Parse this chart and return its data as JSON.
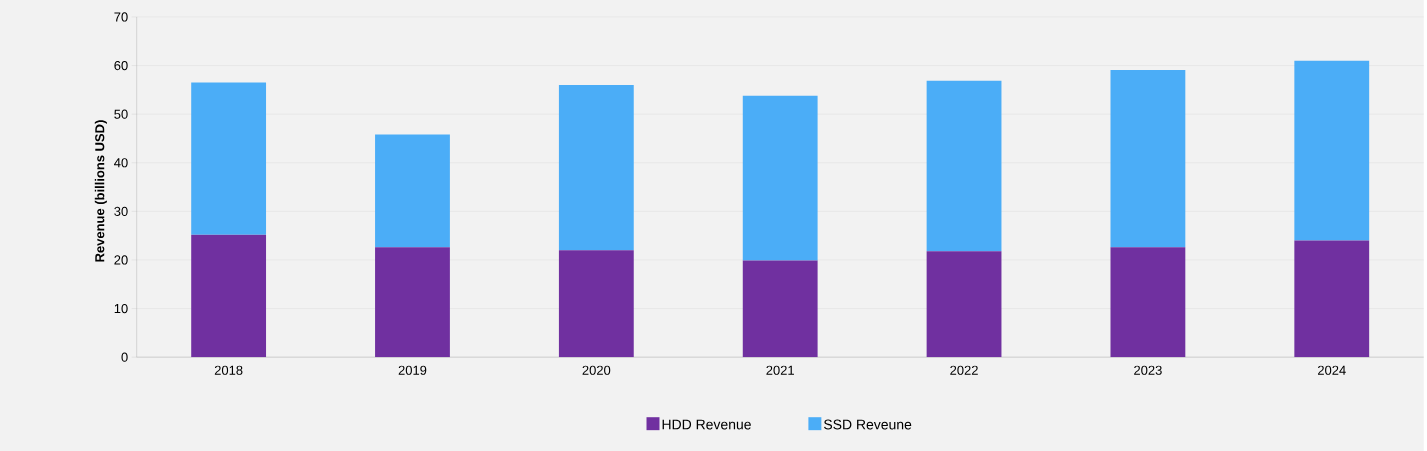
{
  "chart_data": {
    "type": "bar",
    "stacked": true,
    "ylabel": "Revenue (billions USD)",
    "categories": [
      "2018",
      "2019",
      "2020",
      "2021",
      "2022",
      "2023",
      "2024"
    ],
    "series": [
      {
        "name": "HDD Revenue",
        "color": "#7030a0",
        "values": [
          25.2,
          22.6,
          22.0,
          19.9,
          21.8,
          22.6,
          24.0
        ]
      },
      {
        "name": "SSD Reveune",
        "color": "#4badf7",
        "values": [
          31.3,
          23.2,
          34.0,
          33.9,
          35.1,
          36.5,
          37.0
        ]
      }
    ],
    "ylim": [
      0,
      70
    ],
    "yticks": [
      0,
      10,
      20,
      30,
      40,
      50,
      60,
      70
    ],
    "grid": "y",
    "legend": "bottom"
  }
}
